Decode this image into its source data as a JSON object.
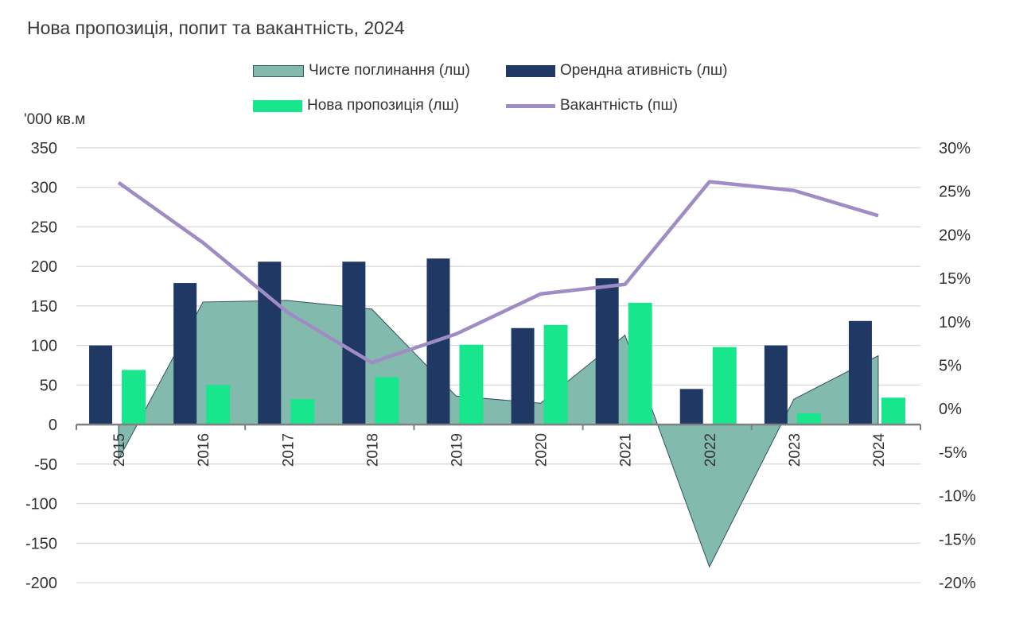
{
  "chart_data": {
    "type": "bar",
    "title": "Нова пропозиція, попит та вакантність, 2024",
    "ylabel": "'000 кв.м",
    "categories": [
      "2015",
      "2016",
      "2017",
      "2018",
      "2019",
      "2020",
      "2021",
      "2022",
      "2023",
      "2024"
    ],
    "ylim": [
      -200,
      350
    ],
    "yticks": [
      "350",
      "300",
      "250",
      "200",
      "150",
      "100",
      "50",
      "0",
      "-50",
      "-100",
      "-150",
      "-200"
    ],
    "y2lim": [
      -20,
      30
    ],
    "y2ticks": [
      "30%",
      "25%",
      "20%",
      "15%",
      "10%",
      "5%",
      "0%",
      "-5%",
      "-10%",
      "-15%",
      "-20%"
    ],
    "grid": true,
    "legend_placement": "top",
    "series": [
      {
        "name": "Чисте поглинання (лш)",
        "type": "area",
        "axis": "left",
        "color": "#82bbae",
        "values": [
          -44,
          155,
          157,
          146,
          36,
          27,
          113,
          -180,
          32,
          87
        ]
      },
      {
        "name": "Орендна ативність (лш)",
        "type": "bar",
        "axis": "left",
        "color": "#1f3864",
        "values": [
          100,
          179,
          206,
          206,
          210,
          122,
          185,
          45,
          100,
          131
        ]
      },
      {
        "name": "Нова пропозиція (лш)",
        "type": "bar",
        "axis": "left",
        "color": "#17e68c",
        "values": [
          69,
          50,
          32,
          60,
          101,
          126,
          154,
          98,
          14,
          34
        ]
      },
      {
        "name": "Вакантність (пш)",
        "type": "line",
        "axis": "right",
        "color": "#a08cc4",
        "values": [
          26.0,
          19.1,
          11.1,
          5.3,
          8.6,
          13.2,
          14.3,
          26.1,
          25.1,
          22.2
        ]
      }
    ]
  }
}
